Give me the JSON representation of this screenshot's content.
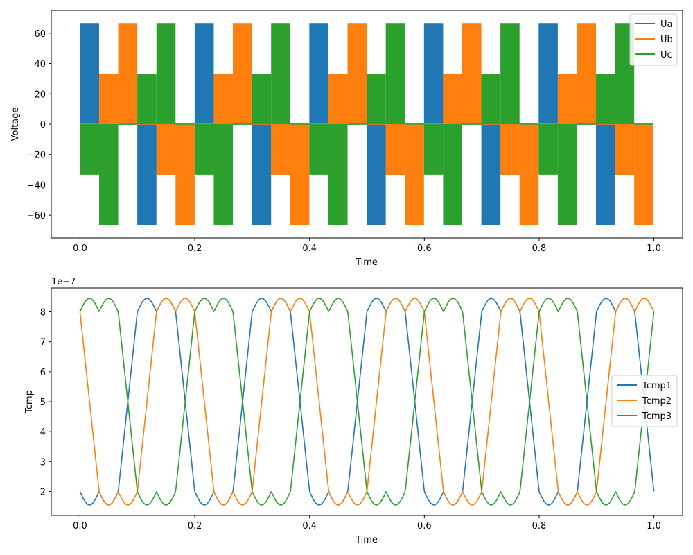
{
  "chart_data": [
    {
      "type": "line",
      "title": "",
      "xlabel": "Time",
      "ylabel": "Voltage",
      "xlim": [
        -0.05,
        1.05
      ],
      "ylim": [
        -75,
        75
      ],
      "xticks": [
        0.0,
        0.2,
        0.4,
        0.6,
        0.8,
        1.0
      ],
      "xtick_labels": [
        "0.0",
        "0.2",
        "0.4",
        "0.6",
        "0.8",
        "1.0"
      ],
      "yticks": [
        -60,
        -40,
        -20,
        0,
        20,
        40,
        60
      ],
      "ytick_labels": [
        "−60",
        "−40",
        "−20",
        "0",
        "20",
        "40",
        "60"
      ],
      "grid": false,
      "legend_position": "top-right",
      "sector_duration": 0.0333,
      "pwm_period": 0.001,
      "level_values": [
        -66.67,
        -33.33,
        0,
        33.33,
        66.67
      ],
      "series": [
        {
          "name": "Ua",
          "color": "#1f77b4",
          "sector_levels": [
            66.67,
            33.33,
            0,
            -66.67,
            -33.33,
            0
          ]
        },
        {
          "name": "Ub",
          "color": "#ff7f0e",
          "sector_levels": [
            0,
            33.33,
            66.67,
            0,
            -33.33,
            -66.67
          ]
        },
        {
          "name": "Uc",
          "color": "#2ca02c",
          "sector_levels": [
            -33.33,
            -66.67,
            0,
            33.33,
            66.67,
            0
          ]
        }
      ]
    },
    {
      "type": "line",
      "title": "",
      "xlabel": "Time",
      "ylabel": "Tcmp",
      "y_offset_label": "1e−7",
      "xlim": [
        -0.05,
        1.05
      ],
      "ylim": [
        1.2,
        8.8
      ],
      "xticks": [
        0.0,
        0.2,
        0.4,
        0.6,
        0.8,
        1.0
      ],
      "xtick_labels": [
        "0.0",
        "0.2",
        "0.4",
        "0.6",
        "0.8",
        "1.0"
      ],
      "yticks": [
        2,
        3,
        4,
        5,
        6,
        7,
        8
      ],
      "ytick_labels": [
        "2",
        "3",
        "4",
        "5",
        "6",
        "7",
        "8"
      ],
      "grid": false,
      "legend_position": "center-right",
      "period": 0.2,
      "low_value": 1.55,
      "high_value": 8.45,
      "corner_value": 2.0,
      "top_value": 8.0,
      "series": [
        {
          "name": "Tcmp1",
          "color": "#1f77b4",
          "phase_shift": 0.0
        },
        {
          "name": "Tcmp2",
          "color": "#ff7f0e",
          "phase_shift": 0.0667
        },
        {
          "name": "Tcmp3",
          "color": "#2ca02c",
          "phase_shift": 0.1333
        }
      ]
    }
  ]
}
